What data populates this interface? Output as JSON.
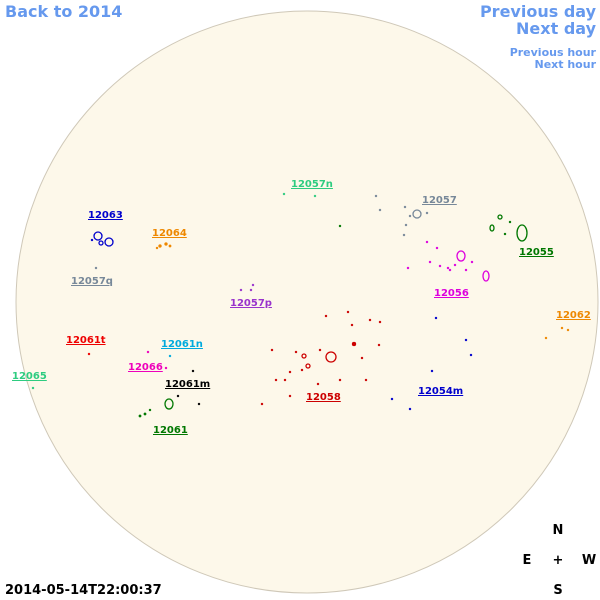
{
  "nav": {
    "back": "Back to 2014",
    "previous_day": "Previous day",
    "next_day": "Next day",
    "previous_hour": "Previous hour",
    "next_hour": "Next hour"
  },
  "regions": [
    {
      "label": "12057n",
      "color": "#2ecc80"
    },
    {
      "label": "12057",
      "color": "#778899"
    },
    {
      "label": "12063",
      "color": "#0000cc"
    },
    {
      "label": "12064",
      "color": "#ee8800"
    },
    {
      "label": "12055",
      "color": "#007700"
    },
    {
      "label": "12057q",
      "color": "#778899"
    },
    {
      "label": "12056",
      "color": "#dd00dd"
    },
    {
      "label": "12057p",
      "color": "#9933cc"
    },
    {
      "label": "12062",
      "color": "#ee8800"
    },
    {
      "label": "12061t",
      "color": "#ee0000"
    },
    {
      "label": "12061n",
      "color": "#00aadd"
    },
    {
      "label": "12066",
      "color": "#ee00bb"
    },
    {
      "label": "12065",
      "color": "#2ecc80"
    },
    {
      "label": "12061m",
      "color": "#000000"
    },
    {
      "label": "12058",
      "color": "#cc0000"
    },
    {
      "label": "12054m",
      "color": "#0000cc"
    },
    {
      "label": "12061",
      "color": "#007700"
    }
  ],
  "compass": {
    "north": "N",
    "east": "E",
    "center": "+",
    "west": "W",
    "south": "S"
  },
  "timestamp": "2014-05-14T22:00:37"
}
